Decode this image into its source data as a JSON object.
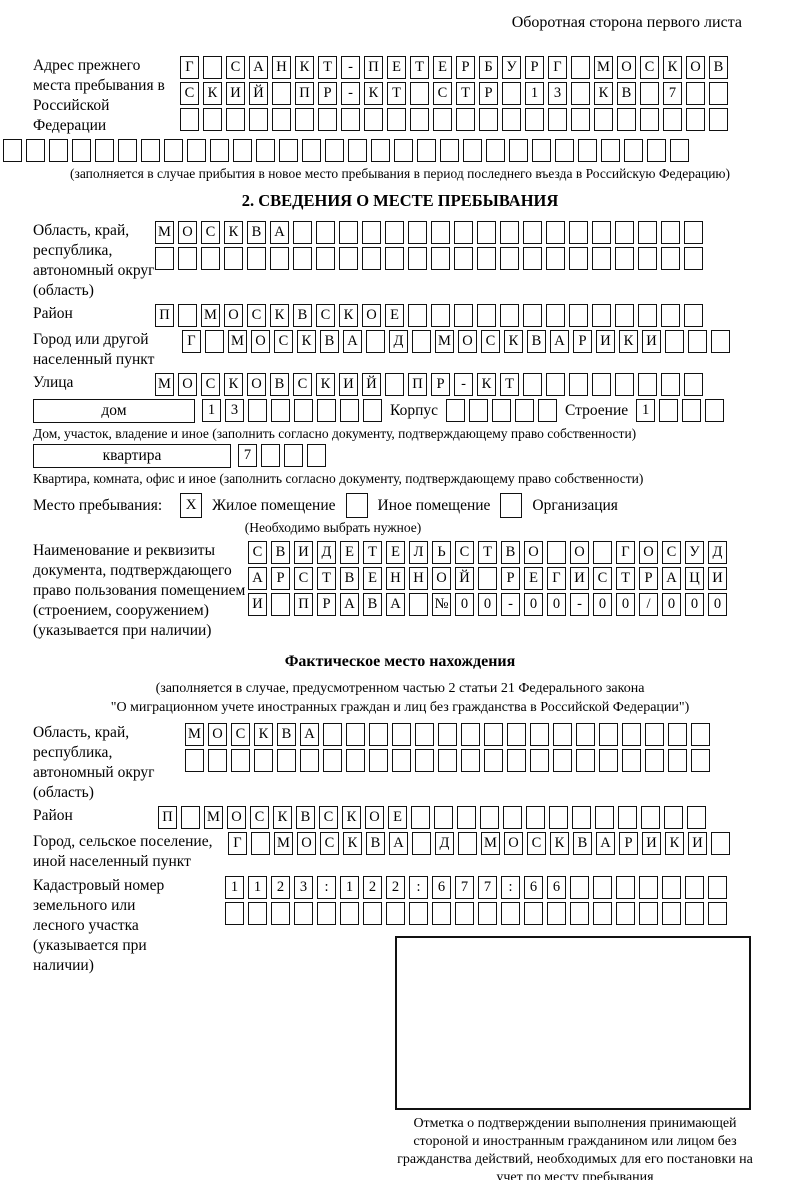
{
  "header": {
    "note": "Оборотная сторона первого листа"
  },
  "section1": {
    "label": "Адрес прежнего места пребывания в Российской Федерации",
    "rows": [
      {
        "len": 24,
        "text": "Г САНКТ-ПЕТЕРБУРГ МОСКОВ"
      },
      {
        "len": 24,
        "text": "СКИЙ ПР-КТ СТР 13 КВ 7"
      },
      {
        "len": 24,
        "text": ""
      },
      {
        "len": 30,
        "text": ""
      }
    ],
    "caption": "(заполняется в случае прибытия в новое место пребывания в период последнего въезда в Российскую Федерацию)"
  },
  "section2": {
    "title": "2. СВЕДЕНИЯ О МЕСТЕ ПРЕБЫВАНИЯ",
    "oblast": {
      "label": "Область, край, республика, автономный округ (область)",
      "rows": [
        {
          "len": 24,
          "text": "МОСКВА"
        },
        {
          "len": 24,
          "text": ""
        }
      ]
    },
    "raion": {
      "label": "Район",
      "row": {
        "len": 24,
        "text": "П МОСКВСКОЕ"
      }
    },
    "city": {
      "label": "Город или другой населенный пункт",
      "row": {
        "len": 24,
        "text": "Г МОСКВА Д МОСКВАРИКИ"
      }
    },
    "street": {
      "label": "Улица",
      "row": {
        "len": 24,
        "text": "МОСКОВСКИЙ ПР-КТ"
      }
    },
    "house": {
      "box_label": "дом",
      "cells": {
        "len": 8,
        "text": "13"
      },
      "korpus_label": "Корпус",
      "korpus_cells": {
        "len": 5,
        "text": ""
      },
      "stroenie_label": "Строение",
      "stroenie_cells": {
        "len": 4,
        "text": "1"
      },
      "caption": "Дом, участок, владение и иное (заполнить согласно документу, подтверждающему право собственности)"
    },
    "apartment": {
      "box_label": "квартира",
      "cells": {
        "len": 4,
        "text": "7"
      },
      "caption": "Квартира, комната, офис и иное (заполнить согласно документу, подтверждающему право собственности)"
    },
    "stay_type": {
      "label": "Место пребывания:",
      "residential": {
        "mark": "X",
        "label": "Жилое помещение"
      },
      "other": {
        "mark": "",
        "label": "Иное помещение"
      },
      "organization": {
        "mark": "",
        "label": "Организация"
      },
      "note": "(Необходимо выбрать нужное)"
    },
    "document": {
      "label": "Наименование и реквизиты документа, подтверждающего право пользования помещением (строением, сооружением) (указывается при наличии)",
      "rows": [
        {
          "len": 21,
          "text": "СВИДЕТЕЛЬСТВО О ГОСУД"
        },
        {
          "len": 21,
          "text": "АРСТВЕННОЙ РЕГИСТРАЦИ"
        },
        {
          "len": 21,
          "text": "И ПРАВА №00-00-00/000"
        }
      ]
    }
  },
  "fact": {
    "title": "Фактическое место нахождения",
    "caption1": "(заполняется в случае, предусмотренном частью 2 статьи 21 Федерального закона",
    "caption2": "\"О миграционном учете иностранных граждан и лиц без гражданства в Российской Федерации\")",
    "oblast": {
      "label": "Область, край, республика, автономный округ (область)",
      "rows": [
        {
          "len": 23,
          "text": "МОСКВА"
        },
        {
          "len": 23,
          "text": ""
        }
      ]
    },
    "raion": {
      "label": "Район",
      "row": {
        "len": 24,
        "text": "П МОСКВСКОЕ"
      }
    },
    "city": {
      "label": "Город, сельское поселение, иной населенный пункт",
      "row": {
        "len": 22,
        "text": "Г МОСКВА Д МОСКВАРИКИ"
      }
    },
    "cadastral": {
      "label": "Кадастровый номер земельного или лесного участка (указывается при наличии)",
      "rows": [
        {
          "len": 22,
          "text": "1123:122:677:66"
        },
        {
          "len": 22,
          "text": ""
        }
      ]
    },
    "stamp_caption": "Отметка о подтверждении выполнения принимающей стороной и иностранным гражданином или лицом без гражданства действий, необходимых для его постановки на учет по месту пребывания"
  }
}
